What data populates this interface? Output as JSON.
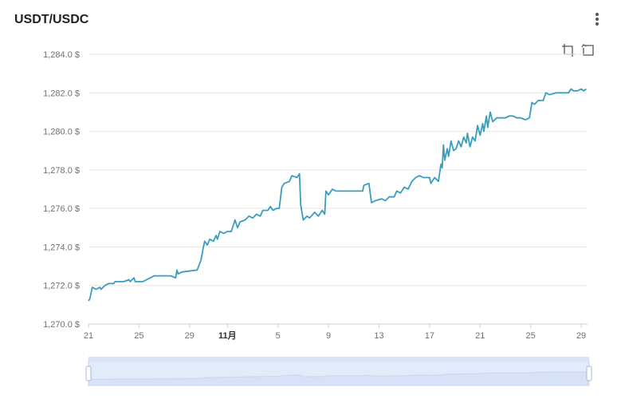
{
  "title": "USDT/USDC",
  "toolbar": {
    "menu_icon": "more-vertical-icon",
    "zoom_icon": "data-zoom-icon",
    "restore_icon": "zoom-reset-icon"
  },
  "colors": {
    "line": "#3a9dbd",
    "grid": "#e6e6e6",
    "axis_text": "#6e7079",
    "zoom_fill": "#d7e2f7",
    "zoom_border": "#c6d2ec"
  },
  "chart_data": {
    "type": "line",
    "title": "USDT/USDC",
    "xlabel": "",
    "ylabel": "",
    "ylim": [
      1270,
      1284
    ],
    "y_ticks": [
      "1,284.0 $",
      "1,282.0 $",
      "1,280.0 $",
      "1,278.0 $",
      "1,276.0 $",
      "1,274.0 $",
      "1,272.0 $",
      "1,270.0 $"
    ],
    "x_range_days": [
      0,
      39.5
    ],
    "x_ticks": [
      {
        "day": 0,
        "label": "21"
      },
      {
        "day": 4,
        "label": "25"
      },
      {
        "day": 8,
        "label": "29"
      },
      {
        "day": 11,
        "label": "11月"
      },
      {
        "day": 15,
        "label": "5"
      },
      {
        "day": 19,
        "label": "9"
      },
      {
        "day": 23,
        "label": "13"
      },
      {
        "day": 27,
        "label": "17"
      },
      {
        "day": 31,
        "label": "21"
      },
      {
        "day": 35,
        "label": "25"
      },
      {
        "day": 39,
        "label": "29"
      }
    ],
    "series": [
      {
        "values": [
          [
            0.0,
            1271.2
          ],
          [
            0.1,
            1271.3
          ],
          [
            0.3,
            1271.9
          ],
          [
            0.6,
            1271.8
          ],
          [
            0.9,
            1271.9
          ],
          [
            1.0,
            1271.8
          ],
          [
            1.3,
            1272.0
          ],
          [
            1.6,
            1272.1
          ],
          [
            2.0,
            1272.1
          ],
          [
            2.1,
            1272.2
          ],
          [
            2.8,
            1272.2
          ],
          [
            3.2,
            1272.3
          ],
          [
            3.3,
            1272.2
          ],
          [
            3.6,
            1272.4
          ],
          [
            3.7,
            1272.2
          ],
          [
            4.3,
            1272.2
          ],
          [
            4.6,
            1272.3
          ],
          [
            5.2,
            1272.5
          ],
          [
            6.0,
            1272.5
          ],
          [
            6.5,
            1272.5
          ],
          [
            6.9,
            1272.4
          ],
          [
            7.0,
            1272.8
          ],
          [
            7.1,
            1272.6
          ],
          [
            7.4,
            1272.7
          ],
          [
            8.6,
            1272.8
          ],
          [
            8.9,
            1273.3
          ],
          [
            9.1,
            1274.0
          ],
          [
            9.2,
            1274.3
          ],
          [
            9.4,
            1274.1
          ],
          [
            9.6,
            1274.4
          ],
          [
            9.9,
            1274.3
          ],
          [
            10.1,
            1274.6
          ],
          [
            10.2,
            1274.4
          ],
          [
            10.4,
            1274.8
          ],
          [
            10.7,
            1274.7
          ],
          [
            11.0,
            1274.8
          ],
          [
            11.3,
            1274.8
          ],
          [
            11.5,
            1275.2
          ],
          [
            11.6,
            1275.4
          ],
          [
            11.8,
            1275.0
          ],
          [
            12.0,
            1275.3
          ],
          [
            12.4,
            1275.4
          ],
          [
            12.7,
            1275.6
          ],
          [
            13.0,
            1275.5
          ],
          [
            13.3,
            1275.7
          ],
          [
            13.6,
            1275.6
          ],
          [
            13.8,
            1275.9
          ],
          [
            14.2,
            1275.9
          ],
          [
            14.4,
            1276.1
          ],
          [
            14.6,
            1275.9
          ],
          [
            14.9,
            1276.0
          ],
          [
            15.1,
            1276.0
          ],
          [
            15.3,
            1277.1
          ],
          [
            15.5,
            1277.3
          ],
          [
            15.9,
            1277.4
          ],
          [
            16.1,
            1277.7
          ],
          [
            16.5,
            1277.6
          ],
          [
            16.7,
            1277.8
          ],
          [
            16.8,
            1276.2
          ],
          [
            17.0,
            1275.4
          ],
          [
            17.3,
            1275.6
          ],
          [
            17.5,
            1275.5
          ],
          [
            17.9,
            1275.8
          ],
          [
            18.2,
            1275.6
          ],
          [
            18.5,
            1275.9
          ],
          [
            18.7,
            1275.7
          ],
          [
            18.8,
            1276.9
          ],
          [
            19.0,
            1276.7
          ],
          [
            19.3,
            1277.0
          ],
          [
            19.6,
            1276.9
          ],
          [
            20.5,
            1276.9
          ],
          [
            21.5,
            1276.9
          ],
          [
            21.7,
            1276.9
          ],
          [
            21.8,
            1277.2
          ],
          [
            22.2,
            1277.3
          ],
          [
            22.4,
            1276.3
          ],
          [
            22.7,
            1276.4
          ],
          [
            23.2,
            1276.5
          ],
          [
            23.5,
            1276.4
          ],
          [
            23.8,
            1276.6
          ],
          [
            24.2,
            1276.6
          ],
          [
            24.4,
            1276.9
          ],
          [
            24.7,
            1276.8
          ],
          [
            25.0,
            1277.1
          ],
          [
            25.3,
            1277.0
          ],
          [
            25.6,
            1277.4
          ],
          [
            25.9,
            1277.6
          ],
          [
            26.2,
            1277.7
          ],
          [
            26.5,
            1277.6
          ],
          [
            27.0,
            1277.6
          ],
          [
            27.1,
            1277.3
          ],
          [
            27.4,
            1277.6
          ],
          [
            27.7,
            1277.4
          ],
          [
            27.9,
            1278.3
          ],
          [
            28.0,
            1278.1
          ],
          [
            28.1,
            1279.3
          ],
          [
            28.2,
            1278.5
          ],
          [
            28.4,
            1279.1
          ],
          [
            28.5,
            1278.7
          ],
          [
            28.7,
            1279.5
          ],
          [
            28.9,
            1279.0
          ],
          [
            29.1,
            1279.1
          ],
          [
            29.3,
            1279.5
          ],
          [
            29.5,
            1279.2
          ],
          [
            29.7,
            1279.7
          ],
          [
            29.9,
            1279.4
          ],
          [
            30.0,
            1279.9
          ],
          [
            30.2,
            1279.2
          ],
          [
            30.4,
            1279.7
          ],
          [
            30.6,
            1279.5
          ],
          [
            30.8,
            1280.3
          ],
          [
            31.0,
            1279.8
          ],
          [
            31.2,
            1280.4
          ],
          [
            31.3,
            1280.0
          ],
          [
            31.5,
            1280.8
          ],
          [
            31.6,
            1280.2
          ],
          [
            31.8,
            1281.0
          ],
          [
            32.0,
            1280.5
          ],
          [
            32.3,
            1280.7
          ],
          [
            33.0,
            1280.7
          ],
          [
            33.3,
            1280.8
          ],
          [
            33.6,
            1280.8
          ],
          [
            33.9,
            1280.7
          ],
          [
            34.2,
            1280.7
          ],
          [
            34.6,
            1280.6
          ],
          [
            34.9,
            1280.7
          ],
          [
            35.1,
            1281.5
          ],
          [
            35.3,
            1281.4
          ],
          [
            35.6,
            1281.6
          ],
          [
            36.0,
            1281.6
          ],
          [
            36.2,
            1282.0
          ],
          [
            36.5,
            1281.9
          ],
          [
            37.0,
            1282.0
          ],
          [
            37.5,
            1282.0
          ],
          [
            38.0,
            1282.0
          ],
          [
            38.2,
            1282.2
          ],
          [
            38.4,
            1282.1
          ],
          [
            38.7,
            1282.1
          ],
          [
            39.0,
            1282.2
          ],
          [
            39.2,
            1282.1
          ],
          [
            39.4,
            1282.2
          ]
        ]
      }
    ]
  }
}
